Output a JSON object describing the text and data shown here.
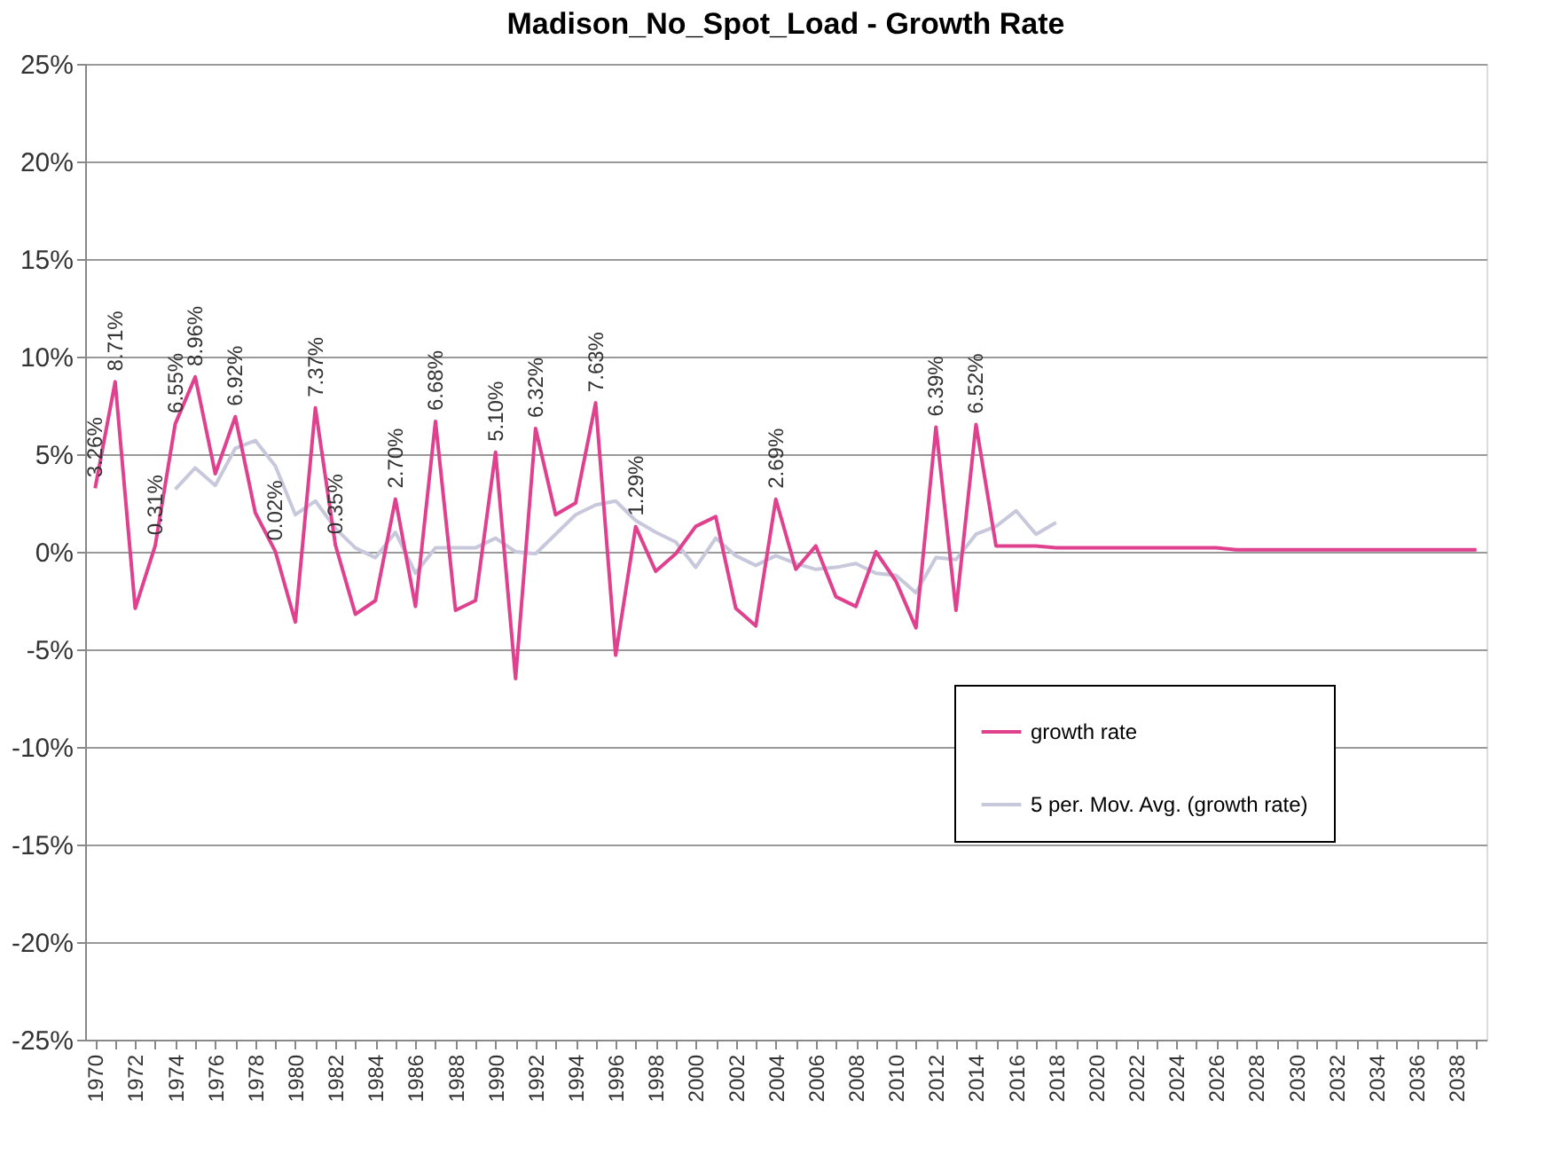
{
  "chart_data": {
    "type": "line",
    "title": "Madison_No_Spot_Load - Growth Rate",
    "categories": [
      "1970",
      null,
      "1972",
      null,
      "1974",
      null,
      "1976",
      null,
      "1978",
      null,
      "1980",
      null,
      "1982",
      null,
      "1984",
      null,
      "1986",
      null,
      "1988",
      null,
      "1990",
      null,
      "1992",
      null,
      "1994",
      null,
      "1996",
      null,
      "1998",
      null,
      "2000",
      null,
      "2002",
      null,
      "2004",
      null,
      "2006",
      null,
      "2008",
      null,
      "2010",
      null,
      "2012",
      null,
      "2014",
      null,
      "2016",
      null,
      "2018",
      null,
      "2020",
      null,
      "2022",
      null,
      "2024",
      null,
      "2026",
      null,
      "2028",
      null,
      "2030",
      null,
      "2032",
      null,
      "2034",
      null,
      "2036",
      null,
      "2038",
      null
    ],
    "series": [
      {
        "name": "growth rate",
        "color": "#e0418f",
        "values": [
          3.26,
          8.71,
          -2.9,
          0.31,
          6.55,
          8.96,
          4.0,
          6.92,
          2.0,
          0.02,
          -3.6,
          7.37,
          0.35,
          -3.2,
          -2.5,
          2.7,
          -2.8,
          6.68,
          -3.0,
          -2.5,
          5.1,
          -6.5,
          6.32,
          1.9,
          2.5,
          7.63,
          -5.3,
          1.29,
          -1.0,
          -0.1,
          1.3,
          1.8,
          -2.9,
          -3.8,
          2.69,
          -0.9,
          0.3,
          -2.3,
          -2.8,
          0.0,
          -1.5,
          -3.9,
          6.39,
          -3.0,
          6.52,
          0.3,
          0.3,
          0.3,
          0.2,
          0.2,
          0.2,
          0.2,
          0.2,
          0.2,
          0.2,
          0.2,
          0.2,
          0.1,
          0.1,
          0.1,
          0.1,
          0.1,
          0.1,
          0.1,
          0.1,
          0.1,
          0.1,
          0.1,
          0.1,
          0.1
        ],
        "value_labels": [
          "3.26%",
          "8.71%",
          null,
          "0.31%",
          "6.55%",
          "8.96%",
          null,
          "6.92%",
          null,
          "0.02%",
          null,
          "7.37%",
          "0.35%",
          null,
          null,
          "2.70%",
          null,
          "6.68%",
          null,
          null,
          "5.10%",
          null,
          "6.32%",
          null,
          null,
          "7.63%",
          null,
          "1.29%",
          null,
          null,
          null,
          null,
          null,
          null,
          "2.69%",
          null,
          null,
          null,
          null,
          null,
          null,
          null,
          "6.39%",
          null,
          "6.52%",
          null,
          null,
          null,
          null,
          null,
          null,
          null,
          null,
          null,
          null,
          null,
          null,
          null,
          null,
          null,
          null,
          null,
          null,
          null,
          null,
          null,
          null,
          null,
          null,
          null
        ]
      },
      {
        "name": "5 per. Mov. Avg. (growth rate)",
        "color": "#c8c8dc",
        "values": [
          null,
          null,
          null,
          null,
          3.2,
          4.3,
          3.4,
          5.3,
          5.7,
          4.4,
          1.9,
          2.6,
          1.2,
          0.2,
          -0.3,
          1.0,
          -1.1,
          0.2,
          0.2,
          0.2,
          0.7,
          0.0,
          -0.1,
          0.9,
          1.9,
          2.4,
          2.6,
          1.6,
          1.0,
          0.5,
          -0.8,
          0.7,
          -0.2,
          -0.7,
          -0.2,
          -0.6,
          -0.9,
          -0.8,
          -0.6,
          -1.1,
          -1.2,
          -2.1,
          -0.3,
          -0.4,
          0.9,
          1.3,
          2.1,
          0.9,
          1.5,
          null,
          null,
          null,
          null,
          null,
          null,
          null,
          null,
          null,
          null,
          null,
          null,
          null,
          null,
          null,
          null,
          null,
          null,
          null,
          null,
          null
        ]
      }
    ],
    "ylim": [
      -25,
      25
    ],
    "yticks": [
      {
        "value": -25,
        "label": "-25%"
      },
      {
        "value": -20,
        "label": "-20%"
      },
      {
        "value": -15,
        "label": "-15%"
      },
      {
        "value": -10,
        "label": "-10%"
      },
      {
        "value": -5,
        "label": "-5%"
      },
      {
        "value": 0,
        "label": "0%"
      },
      {
        "value": 5,
        "label": "5%"
      },
      {
        "value": 10,
        "label": "10%"
      },
      {
        "value": 15,
        "label": "15%"
      },
      {
        "value": 20,
        "label": "20%"
      },
      {
        "value": 25,
        "label": "25%"
      }
    ],
    "grid": "y",
    "legend": "bottom right",
    "marker": "none",
    "line_style": "solid"
  }
}
